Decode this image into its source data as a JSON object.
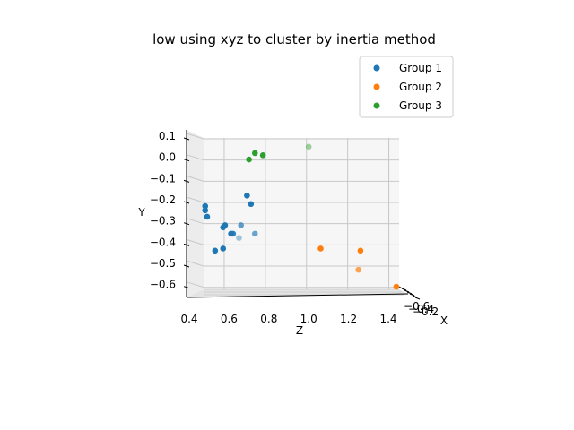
{
  "chart_data": {
    "type": "scatter",
    "title": "low using xyz to cluster by inertia method",
    "xlabel": "X",
    "ylabel": "Y",
    "zlabel": "Z",
    "projection": "3d",
    "grid": true,
    "legend_position": "top-right",
    "z_ticks": [
      "0.4",
      "0.6",
      "0.8",
      "1.0",
      "1.2",
      "1.4"
    ],
    "y_ticks": [
      "0.1",
      "0.0",
      "−0.1",
      "−0.2",
      "−0.3",
      "−0.4",
      "−0.5",
      "−0.6"
    ],
    "x_ticks": [
      "−0.6",
      "−0.4",
      "−0.2"
    ],
    "ylim": [
      -0.65,
      0.12
    ],
    "zlim": [
      0.4,
      1.45
    ],
    "series": [
      {
        "name": "Group 1",
        "color": "#1f77b4",
        "points": [
          {
            "z": 0.48,
            "y": -0.23,
            "a": 1.0
          },
          {
            "z": 0.48,
            "y": -0.25,
            "a": 1.0
          },
          {
            "z": 0.49,
            "y": -0.28,
            "a": 1.0
          },
          {
            "z": 0.57,
            "y": -0.33,
            "a": 1.0
          },
          {
            "z": 0.58,
            "y": -0.32,
            "a": 1.0
          },
          {
            "z": 0.61,
            "y": -0.36,
            "a": 1.0
          },
          {
            "z": 0.62,
            "y": -0.36,
            "a": 0.9
          },
          {
            "z": 0.53,
            "y": -0.44,
            "a": 1.0
          },
          {
            "z": 0.57,
            "y": -0.43,
            "a": 1.0
          },
          {
            "z": 0.69,
            "y": -0.18,
            "a": 1.0
          },
          {
            "z": 0.71,
            "y": -0.22,
            "a": 1.0
          },
          {
            "z": 0.66,
            "y": -0.32,
            "a": 0.7
          },
          {
            "z": 0.73,
            "y": -0.36,
            "a": 0.65
          },
          {
            "z": 0.65,
            "y": -0.38,
            "a": 0.4
          }
        ]
      },
      {
        "name": "Group 2",
        "color": "#ff7f0e",
        "points": [
          {
            "z": 1.06,
            "y": -0.43,
            "a": 1.0
          },
          {
            "z": 1.26,
            "y": -0.44,
            "a": 1.0
          },
          {
            "z": 1.25,
            "y": -0.53,
            "a": 0.7
          },
          {
            "z": 1.44,
            "y": -0.61,
            "a": 1.0
          }
        ]
      },
      {
        "name": "Group 3",
        "color": "#2ca02c",
        "points": [
          {
            "z": 0.73,
            "y": 0.02,
            "a": 1.0
          },
          {
            "z": 0.77,
            "y": 0.01,
            "a": 1.0
          },
          {
            "z": 0.7,
            "y": -0.01,
            "a": 1.0
          },
          {
            "z": 1.0,
            "y": 0.05,
            "a": 0.45
          }
        ]
      }
    ]
  }
}
